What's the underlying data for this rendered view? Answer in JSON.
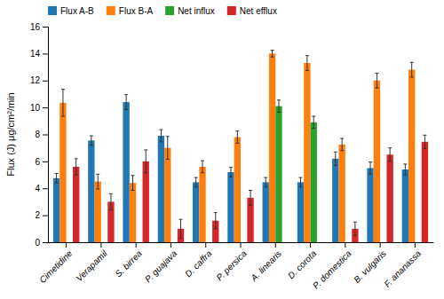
{
  "chart_data": {
    "type": "bar",
    "y_label": "Flux (J) μg/cm²/min",
    "categories": [
      "Cimetidine",
      "Verapamil",
      "S. birrea",
      "P. guajava",
      "D. caffra",
      "P. persica",
      "A. linearis",
      "D. corota",
      "P. domestica",
      "B. vulgaris",
      "F. ananassa"
    ],
    "series": [
      {
        "name": "Flux A-B",
        "values": [
          4.75,
          7.55,
          10.4,
          7.9,
          4.45,
          5.2,
          4.45,
          4.45,
          6.2,
          5.5,
          5.4
        ],
        "errors": [
          0.35,
          0.35,
          0.55,
          0.45,
          0.35,
          0.35,
          0.35,
          0.35,
          0.5,
          0.45,
          0.4
        ]
      },
      {
        "name": "Flux B-A",
        "values": [
          10.35,
          4.5,
          4.4,
          7.0,
          5.6,
          7.8,
          14.0,
          13.3,
          7.25,
          12.0,
          12.8
        ],
        "errors": [
          1.0,
          0.55,
          0.55,
          0.85,
          0.45,
          0.45,
          0.25,
          0.55,
          0.45,
          0.55,
          0.55
        ]
      },
      {
        "name": "Net influx",
        "values": [
          null,
          null,
          null,
          null,
          null,
          null,
          10.1,
          8.9,
          null,
          null,
          null
        ],
        "errors": [
          null,
          null,
          null,
          null,
          null,
          null,
          0.45,
          0.45,
          null,
          null,
          null
        ]
      },
      {
        "name": "Net efflux",
        "values": [
          5.6,
          3.0,
          6.0,
          1.0,
          1.6,
          3.3,
          null,
          null,
          1.0,
          6.5,
          7.45
        ],
        "errors": [
          0.6,
          0.6,
          0.85,
          0.7,
          0.6,
          0.55,
          null,
          null,
          0.5,
          0.5,
          0.5
        ]
      }
    ],
    "ylim": [
      0,
      16
    ],
    "yticks": [
      0,
      2,
      4,
      6,
      8,
      10,
      12,
      14,
      16
    ],
    "grid": false,
    "legend": "upper left"
  }
}
